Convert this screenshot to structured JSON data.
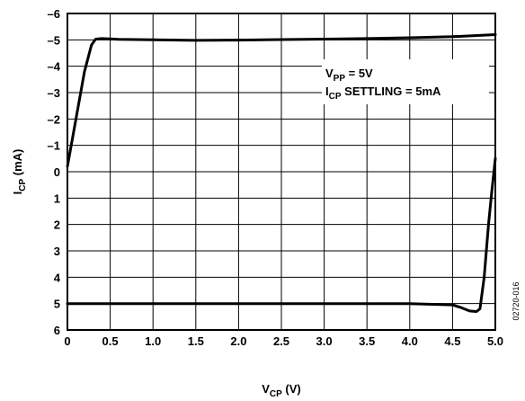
{
  "chart_data": {
    "type": "line",
    "xlabel": {
      "main": "V",
      "sub": "CP",
      "rest": " (V)"
    },
    "ylabel": {
      "main": "I",
      "sub": "CP",
      "rest": " (mA)"
    },
    "xlim": [
      0,
      5
    ],
    "ylim": [
      -6,
      6
    ],
    "y_inverted": true,
    "grid": true,
    "x_ticks": [
      0,
      0.5,
      1.0,
      1.5,
      2.0,
      2.5,
      3.0,
      3.5,
      4.0,
      4.5,
      5.0
    ],
    "x_tick_labels": [
      "0",
      "0.5",
      "1.0",
      "1.5",
      "2.0",
      "2.5",
      "3.0",
      "3.5",
      "4.0",
      "4.5",
      "5.0"
    ],
    "y_ticks": [
      -6,
      -5,
      -4,
      -3,
      -2,
      -1,
      0,
      1,
      2,
      3,
      4,
      5,
      6
    ],
    "y_tick_labels": [
      "–6",
      "–5",
      "–4",
      "–3",
      "–2",
      "–1",
      "0",
      "1",
      "2",
      "3",
      "4",
      "5",
      "6"
    ],
    "annotations": [
      {
        "main": "V",
        "sub": "PP",
        "rest": " = 5V"
      },
      {
        "main": "I",
        "sub": "CP",
        "rest": " SETTLING = 5mA"
      }
    ],
    "figure_id": "02720-016",
    "series": [
      {
        "points": [
          [
            0.0,
            -0.2
          ],
          [
            0.1,
            -2.0
          ],
          [
            0.2,
            -3.8
          ],
          [
            0.28,
            -4.8
          ],
          [
            0.33,
            -5.03
          ],
          [
            0.4,
            -5.05
          ],
          [
            0.6,
            -5.02
          ],
          [
            1.0,
            -5.0
          ],
          [
            1.5,
            -4.98
          ],
          [
            2.0,
            -4.99
          ],
          [
            2.5,
            -5.01
          ],
          [
            3.0,
            -5.03
          ],
          [
            3.5,
            -5.05
          ],
          [
            4.0,
            -5.08
          ],
          [
            4.5,
            -5.12
          ],
          [
            5.0,
            -5.2
          ]
        ]
      },
      {
        "points": [
          [
            0.0,
            5.0
          ],
          [
            1.0,
            5.0
          ],
          [
            2.0,
            5.0
          ],
          [
            3.0,
            5.0
          ],
          [
            3.5,
            5.0
          ],
          [
            4.0,
            5.0
          ],
          [
            4.5,
            5.05
          ],
          [
            4.6,
            5.15
          ],
          [
            4.7,
            5.28
          ],
          [
            4.78,
            5.3
          ],
          [
            4.82,
            5.2
          ],
          [
            4.87,
            4.0
          ],
          [
            4.92,
            2.0
          ],
          [
            4.96,
            0.7
          ],
          [
            5.0,
            -0.5
          ]
        ]
      }
    ]
  }
}
